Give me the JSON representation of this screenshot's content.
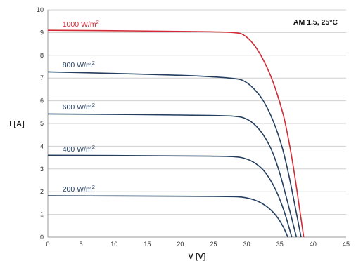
{
  "chart_data": {
    "type": "line",
    "title": "",
    "annotation": "AM 1.5, 25°C",
    "xlabel": "V [V]",
    "ylabel": "I [A]",
    "xlim": [
      0,
      45
    ],
    "ylim": [
      0,
      10
    ],
    "xticks": [
      0,
      5,
      10,
      15,
      20,
      25,
      30,
      35,
      40,
      45
    ],
    "yticks": [
      0,
      1,
      2,
      3,
      4,
      5,
      6,
      7,
      8,
      9,
      10
    ],
    "grid": true,
    "series": [
      {
        "name": "1000 W/m²",
        "name_base": "1000 W/m",
        "name_sup": "2",
        "color": "#d12a36",
        "points": [
          [
            0,
            9.1
          ],
          [
            10,
            9.08
          ],
          [
            20,
            9.05
          ],
          [
            25,
            9.03
          ],
          [
            28,
            9.0
          ],
          [
            29.5,
            8.9
          ],
          [
            31,
            8.5
          ],
          [
            32.5,
            7.8
          ],
          [
            34,
            6.8
          ],
          [
            35.5,
            5.4
          ],
          [
            36.5,
            4.0
          ],
          [
            37.3,
            2.6
          ],
          [
            38,
            1.2
          ],
          [
            38.6,
            0
          ]
        ]
      },
      {
        "name": "800 W/m²",
        "name_base": "800 W/m",
        "name_sup": "2",
        "color": "#243f60",
        "points": [
          [
            0,
            7.27
          ],
          [
            10,
            7.2
          ],
          [
            20,
            7.12
          ],
          [
            25,
            7.05
          ],
          [
            28,
            6.98
          ],
          [
            29.5,
            6.88
          ],
          [
            31,
            6.55
          ],
          [
            32.5,
            6.0
          ],
          [
            34,
            5.1
          ],
          [
            35.3,
            4.0
          ],
          [
            36.3,
            2.8
          ],
          [
            37.2,
            1.5
          ],
          [
            38.2,
            0
          ]
        ]
      },
      {
        "name": "600 W/m²",
        "name_base": "600 W/m",
        "name_sup": "2",
        "color": "#243f60",
        "points": [
          [
            0,
            5.42
          ],
          [
            10,
            5.4
          ],
          [
            20,
            5.37
          ],
          [
            25,
            5.35
          ],
          [
            28,
            5.32
          ],
          [
            29.5,
            5.25
          ],
          [
            31,
            5.0
          ],
          [
            32.5,
            4.5
          ],
          [
            33.8,
            3.8
          ],
          [
            35,
            2.8
          ],
          [
            36.2,
            1.5
          ],
          [
            37.5,
            0
          ]
        ]
      },
      {
        "name": "400 W/m²",
        "name_base": "400 W/m",
        "name_sup": "2",
        "color": "#243f60",
        "points": [
          [
            0,
            3.6
          ],
          [
            10,
            3.59
          ],
          [
            20,
            3.57
          ],
          [
            25,
            3.56
          ],
          [
            28,
            3.54
          ],
          [
            29.5,
            3.48
          ],
          [
            31,
            3.3
          ],
          [
            32.5,
            2.95
          ],
          [
            33.8,
            2.4
          ],
          [
            34.8,
            1.8
          ],
          [
            35.8,
            1.0
          ],
          [
            36.8,
            0
          ]
        ]
      },
      {
        "name": "200 W/m²",
        "name_base": "200 W/m",
        "name_sup": "2",
        "color": "#243f60",
        "points": [
          [
            0,
            1.82
          ],
          [
            10,
            1.81
          ],
          [
            20,
            1.8
          ],
          [
            25,
            1.79
          ],
          [
            28,
            1.78
          ],
          [
            29.5,
            1.75
          ],
          [
            31,
            1.65
          ],
          [
            32.5,
            1.45
          ],
          [
            33.8,
            1.15
          ],
          [
            34.8,
            0.8
          ],
          [
            35.6,
            0.4
          ],
          [
            36.2,
            0
          ]
        ]
      }
    ],
    "series_label_positions": [
      {
        "x": 2.2,
        "y": 9.2
      },
      {
        "x": 2.2,
        "y": 7.4
      },
      {
        "x": 2.2,
        "y": 5.55
      },
      {
        "x": 2.2,
        "y": 3.7
      },
      {
        "x": 2.2,
        "y": 1.95
      }
    ]
  }
}
